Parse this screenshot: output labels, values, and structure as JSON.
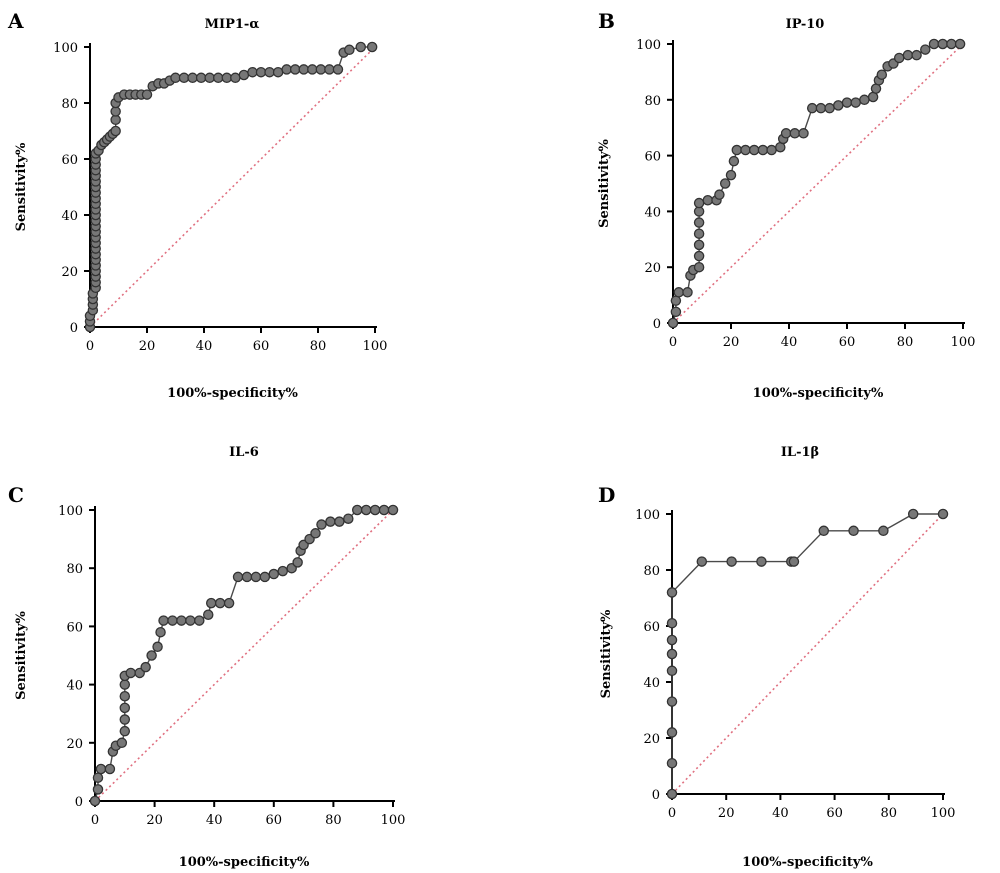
{
  "colors": {
    "axis": "#000000",
    "curve_line": "#4a4a4a",
    "marker_fill": "#777777",
    "marker_stroke": "#333333",
    "reference_line": "#e07080"
  },
  "chart_data": [
    {
      "panel": "A",
      "type": "line",
      "title": "MIP1-α",
      "xlabel": "100%-specificity%",
      "ylabel": "Sensitivity%",
      "xlim": [
        0,
        100
      ],
      "ylim": [
        0,
        100
      ],
      "x_ticks": [
        0,
        20,
        40,
        60,
        80,
        100
      ],
      "y_ticks": [
        0,
        20,
        40,
        60,
        80,
        100
      ],
      "reference_line": [
        [
          0,
          0
        ],
        [
          100,
          100
        ]
      ],
      "series": [
        {
          "points": [
            [
              0,
              0
            ],
            [
              0,
              2
            ],
            [
              0,
              4
            ],
            [
              1,
              6
            ],
            [
              1,
              8
            ],
            [
              1,
              10
            ],
            [
              1,
              12
            ],
            [
              2,
              14
            ],
            [
              2,
              16
            ],
            [
              2,
              18
            ],
            [
              2,
              20
            ],
            [
              2,
              22
            ],
            [
              2,
              24
            ],
            [
              2,
              26
            ],
            [
              2,
              28
            ],
            [
              2,
              30
            ],
            [
              2,
              32
            ],
            [
              2,
              34
            ],
            [
              2,
              36
            ],
            [
              2,
              38
            ],
            [
              2,
              40
            ],
            [
              2,
              42
            ],
            [
              2,
              44
            ],
            [
              2,
              46
            ],
            [
              2,
              48
            ],
            [
              2,
              50
            ],
            [
              2,
              52
            ],
            [
              2,
              54
            ],
            [
              2,
              56
            ],
            [
              2,
              58
            ],
            [
              2,
              60
            ],
            [
              2,
              62
            ],
            [
              3,
              63
            ],
            [
              4,
              65
            ],
            [
              5,
              66
            ],
            [
              6,
              67
            ],
            [
              7,
              68
            ],
            [
              8,
              69
            ],
            [
              9,
              70
            ],
            [
              9,
              74
            ],
            [
              9,
              77
            ],
            [
              9,
              80
            ],
            [
              10,
              82
            ],
            [
              12,
              83
            ],
            [
              14,
              83
            ],
            [
              16,
              83
            ],
            [
              18,
              83
            ],
            [
              20,
              83
            ],
            [
              22,
              86
            ],
            [
              24,
              87
            ],
            [
              26,
              87
            ],
            [
              28,
              88
            ],
            [
              30,
              89
            ],
            [
              33,
              89
            ],
            [
              36,
              89
            ],
            [
              39,
              89
            ],
            [
              42,
              89
            ],
            [
              45,
              89
            ],
            [
              48,
              89
            ],
            [
              51,
              89
            ],
            [
              54,
              90
            ],
            [
              57,
              91
            ],
            [
              60,
              91
            ],
            [
              63,
              91
            ],
            [
              66,
              91
            ],
            [
              69,
              92
            ],
            [
              72,
              92
            ],
            [
              75,
              92
            ],
            [
              78,
              92
            ],
            [
              81,
              92
            ],
            [
              84,
              92
            ],
            [
              87,
              92
            ],
            [
              89,
              98
            ],
            [
              91,
              99
            ],
            [
              95,
              100
            ],
            [
              99,
              100
            ]
          ]
        }
      ]
    },
    {
      "panel": "B",
      "type": "line",
      "title": "IP-10",
      "xlabel": "100%-specificity%",
      "ylabel": "Sensitivity%",
      "xlim": [
        0,
        100
      ],
      "ylim": [
        0,
        100
      ],
      "x_ticks": [
        0,
        20,
        40,
        60,
        80,
        100
      ],
      "y_ticks": [
        0,
        20,
        40,
        60,
        80,
        100
      ],
      "reference_line": [
        [
          0,
          0
        ],
        [
          100,
          100
        ]
      ],
      "series": [
        {
          "points": [
            [
              0,
              0
            ],
            [
              1,
              4
            ],
            [
              1,
              8
            ],
            [
              2,
              11
            ],
            [
              5,
              11
            ],
            [
              6,
              17
            ],
            [
              7,
              19
            ],
            [
              9,
              20
            ],
            [
              9,
              24
            ],
            [
              9,
              28
            ],
            [
              9,
              32
            ],
            [
              9,
              36
            ],
            [
              9,
              40
            ],
            [
              9,
              43
            ],
            [
              12,
              44
            ],
            [
              15,
              44
            ],
            [
              16,
              46
            ],
            [
              18,
              50
            ],
            [
              20,
              53
            ],
            [
              21,
              58
            ],
            [
              22,
              62
            ],
            [
              25,
              62
            ],
            [
              28,
              62
            ],
            [
              31,
              62
            ],
            [
              34,
              62
            ],
            [
              37,
              63
            ],
            [
              38,
              66
            ],
            [
              39,
              68
            ],
            [
              42,
              68
            ],
            [
              45,
              68
            ],
            [
              48,
              77
            ],
            [
              51,
              77
            ],
            [
              54,
              77
            ],
            [
              57,
              78
            ],
            [
              60,
              79
            ],
            [
              63,
              79
            ],
            [
              66,
              80
            ],
            [
              69,
              81
            ],
            [
              70,
              84
            ],
            [
              71,
              87
            ],
            [
              72,
              89
            ],
            [
              74,
              92
            ],
            [
              76,
              93
            ],
            [
              78,
              95
            ],
            [
              81,
              96
            ],
            [
              84,
              96
            ],
            [
              87,
              98
            ],
            [
              90,
              100
            ],
            [
              93,
              100
            ],
            [
              96,
              100
            ],
            [
              99,
              100
            ]
          ]
        }
      ]
    },
    {
      "panel": "C",
      "type": "line",
      "title": "IL-6",
      "xlabel": "100%-specificity%",
      "ylabel": "Sensitivity%",
      "xlim": [
        0,
        100
      ],
      "ylim": [
        0,
        100
      ],
      "x_ticks": [
        0,
        20,
        40,
        60,
        80,
        100
      ],
      "y_ticks": [
        0,
        20,
        40,
        60,
        80,
        100
      ],
      "reference_line": [
        [
          0,
          0
        ],
        [
          100,
          100
        ]
      ],
      "series": [
        {
          "points": [
            [
              0,
              0
            ],
            [
              1,
              4
            ],
            [
              1,
              8
            ],
            [
              2,
              11
            ],
            [
              5,
              11
            ],
            [
              6,
              17
            ],
            [
              7,
              19
            ],
            [
              9,
              20
            ],
            [
              10,
              24
            ],
            [
              10,
              28
            ],
            [
              10,
              32
            ],
            [
              10,
              36
            ],
            [
              10,
              40
            ],
            [
              10,
              43
            ],
            [
              12,
              44
            ],
            [
              15,
              44
            ],
            [
              17,
              46
            ],
            [
              19,
              50
            ],
            [
              21,
              53
            ],
            [
              22,
              58
            ],
            [
              23,
              62
            ],
            [
              26,
              62
            ],
            [
              29,
              62
            ],
            [
              32,
              62
            ],
            [
              35,
              62
            ],
            [
              38,
              64
            ],
            [
              39,
              68
            ],
            [
              42,
              68
            ],
            [
              45,
              68
            ],
            [
              48,
              77
            ],
            [
              51,
              77
            ],
            [
              54,
              77
            ],
            [
              57,
              77
            ],
            [
              60,
              78
            ],
            [
              63,
              79
            ],
            [
              66,
              80
            ],
            [
              68,
              82
            ],
            [
              69,
              86
            ],
            [
              70,
              88
            ],
            [
              72,
              90
            ],
            [
              74,
              92
            ],
            [
              76,
              95
            ],
            [
              79,
              96
            ],
            [
              82,
              96
            ],
            [
              85,
              97
            ],
            [
              88,
              100
            ],
            [
              91,
              100
            ],
            [
              94,
              100
            ],
            [
              97,
              100
            ],
            [
              100,
              100
            ]
          ]
        }
      ]
    },
    {
      "panel": "D",
      "type": "line",
      "title": "IL-1β",
      "xlabel": "100%-specificity%",
      "ylabel": "Sensitivity%",
      "xlim": [
        0,
        100
      ],
      "ylim": [
        0,
        100
      ],
      "x_ticks": [
        0,
        20,
        40,
        60,
        80,
        100
      ],
      "y_ticks": [
        0,
        20,
        40,
        60,
        80,
        100
      ],
      "reference_line": [
        [
          0,
          0
        ],
        [
          100,
          100
        ]
      ],
      "series": [
        {
          "points": [
            [
              0,
              0
            ],
            [
              0,
              11
            ],
            [
              0,
              22
            ],
            [
              0,
              33
            ],
            [
              0,
              44
            ],
            [
              0,
              50
            ],
            [
              0,
              55
            ],
            [
              0,
              61
            ],
            [
              0,
              72
            ],
            [
              11,
              83
            ],
            [
              22,
              83
            ],
            [
              33,
              83
            ],
            [
              44,
              83
            ],
            [
              45,
              83
            ],
            [
              56,
              94
            ],
            [
              67,
              94
            ],
            [
              78,
              94
            ],
            [
              89,
              100
            ],
            [
              100,
              100
            ]
          ]
        }
      ]
    }
  ]
}
